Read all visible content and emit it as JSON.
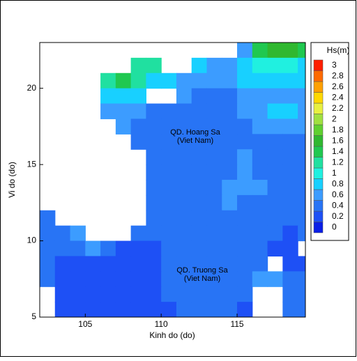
{
  "chart_data": {
    "type": "heatmap",
    "xlabel": "Kinh do (do)",
    "ylabel": "Vi do (do)",
    "xlim": [
      102,
      119.5
    ],
    "ylim": [
      5,
      23
    ],
    "xticks": [
      105,
      110,
      115
    ],
    "yticks": [
      5,
      10,
      15,
      20
    ],
    "x": [
      102.5,
      103.5,
      104.5,
      105.5,
      106.5,
      107.5,
      108.5,
      109.5,
      110.5,
      111.5,
      112.5,
      113.5,
      114.5,
      115.5,
      116.5,
      117.5,
      118.5,
      119.5
    ],
    "y": [
      22.5,
      21.5,
      20.5,
      19.5,
      18.5,
      17.5,
      16.5,
      15.5,
      14.5,
      13.5,
      12.5,
      11.5,
      10.5,
      9.5,
      8.5,
      7.5,
      6.5,
      5.5
    ],
    "z": [
      [
        null,
        null,
        null,
        null,
        null,
        null,
        null,
        null,
        null,
        null,
        null,
        null,
        null,
        0.6,
        1.4,
        1.6,
        1.6,
        1.4
      ],
      [
        null,
        null,
        null,
        null,
        null,
        null,
        1.2,
        1.2,
        null,
        null,
        0.8,
        0.6,
        0.6,
        0.8,
        1.0,
        1.0,
        1.0,
        0.8
      ],
      [
        null,
        null,
        null,
        null,
        1.2,
        1.4,
        1.2,
        0.8,
        0.8,
        0.6,
        0.6,
        0.6,
        0.6,
        0.8,
        0.8,
        0.8,
        0.8,
        0.8
      ],
      [
        null,
        null,
        null,
        null,
        0.8,
        0.8,
        0.8,
        null,
        null,
        0.6,
        0.4,
        0.4,
        0.4,
        0.6,
        0.6,
        0.6,
        0.6,
        0.6
      ],
      [
        null,
        null,
        null,
        null,
        0.6,
        0.6,
        0.6,
        0.4,
        0.4,
        0.4,
        0.4,
        0.4,
        0.4,
        0.6,
        0.6,
        0.8,
        0.8,
        0.6
      ],
      [
        null,
        null,
        null,
        null,
        null,
        0.6,
        0.4,
        0.4,
        0.4,
        0.4,
        0.4,
        0.4,
        0.4,
        0.4,
        0.6,
        0.6,
        0.6,
        0.6
      ],
      [
        null,
        null,
        null,
        null,
        null,
        null,
        0.4,
        0.4,
        0.4,
        0.4,
        0.4,
        0.4,
        0.4,
        0.4,
        0.4,
        0.4,
        0.4,
        0.4
      ],
      [
        null,
        null,
        null,
        null,
        null,
        null,
        null,
        0.4,
        0.4,
        0.4,
        0.4,
        0.4,
        0.4,
        0.6,
        0.4,
        0.4,
        0.4,
        0.4
      ],
      [
        null,
        null,
        null,
        null,
        null,
        null,
        null,
        0.4,
        0.4,
        0.4,
        0.4,
        0.4,
        0.4,
        0.6,
        0.4,
        0.4,
        0.4,
        0.4
      ],
      [
        null,
        null,
        null,
        null,
        null,
        null,
        null,
        0.4,
        0.4,
        0.4,
        0.4,
        0.4,
        0.6,
        0.6,
        0.6,
        0.4,
        0.4,
        0.4
      ],
      [
        null,
        null,
        null,
        null,
        null,
        null,
        null,
        0.4,
        0.4,
        0.4,
        0.4,
        0.4,
        0.6,
        0.4,
        0.4,
        0.4,
        0.4,
        0.4
      ],
      [
        0.4,
        null,
        null,
        null,
        null,
        null,
        null,
        0.4,
        0.4,
        0.4,
        0.4,
        0.4,
        0.4,
        0.4,
        0.4,
        0.4,
        0.4,
        0.4
      ],
      [
        0.4,
        0.4,
        0.6,
        null,
        null,
        null,
        0.4,
        0.4,
        0.4,
        0.4,
        0.4,
        0.4,
        0.4,
        0.4,
        0.4,
        0.4,
        0.2,
        0.4
      ],
      [
        0.4,
        0.4,
        0.4,
        0.6,
        0.4,
        0.2,
        0.2,
        0.2,
        0.4,
        0.4,
        0.4,
        0.4,
        0.4,
        0.4,
        0.4,
        0.2,
        0.2,
        null
      ],
      [
        0.4,
        0.2,
        0.2,
        0.2,
        0.2,
        0.2,
        0.2,
        0.2,
        0.4,
        0.4,
        0.4,
        0.4,
        0.4,
        0.4,
        0.4,
        null,
        0.2,
        0.2
      ],
      [
        0.4,
        0.2,
        0.2,
        0.2,
        0.2,
        0.2,
        0.2,
        0.2,
        0.4,
        0.4,
        0.4,
        0.4,
        0.4,
        0.4,
        0.6,
        0.6,
        0.4,
        0.4
      ],
      [
        null,
        0.2,
        0.2,
        0.2,
        0.2,
        0.2,
        0.2,
        0.2,
        0.4,
        0.4,
        0.4,
        0.4,
        0.4,
        0.4,
        null,
        null,
        0.4,
        0.4
      ],
      [
        null,
        0.2,
        0.2,
        0.2,
        0.2,
        0.2,
        0.2,
        0.2,
        0.2,
        0.4,
        0.4,
        0.4,
        0.4,
        0.2,
        null,
        null,
        0.4,
        0.4
      ]
    ],
    "colorbar": {
      "title": "Hs(m)",
      "levels": [
        0,
        0.2,
        0.4,
        0.6,
        0.8,
        1,
        1.2,
        1.4,
        1.6,
        1.8,
        2,
        2.2,
        2.4,
        2.6,
        2.8,
        3
      ],
      "colors": [
        "#0a1ee6",
        "#1e50f5",
        "#2874f5",
        "#3c9cff",
        "#18d0ff",
        "#20f0e0",
        "#20e0a0",
        "#20c850",
        "#30b830",
        "#60d030",
        "#a0e040",
        "#e8f040",
        "#ffd800",
        "#ffa000",
        "#ff6a00",
        "#ff1e00"
      ]
    },
    "annotations": [
      "QD. Hoang Sa",
      "(Viet Nam)",
      "QD. Truong Sa",
      "(Viet Nam)"
    ]
  }
}
